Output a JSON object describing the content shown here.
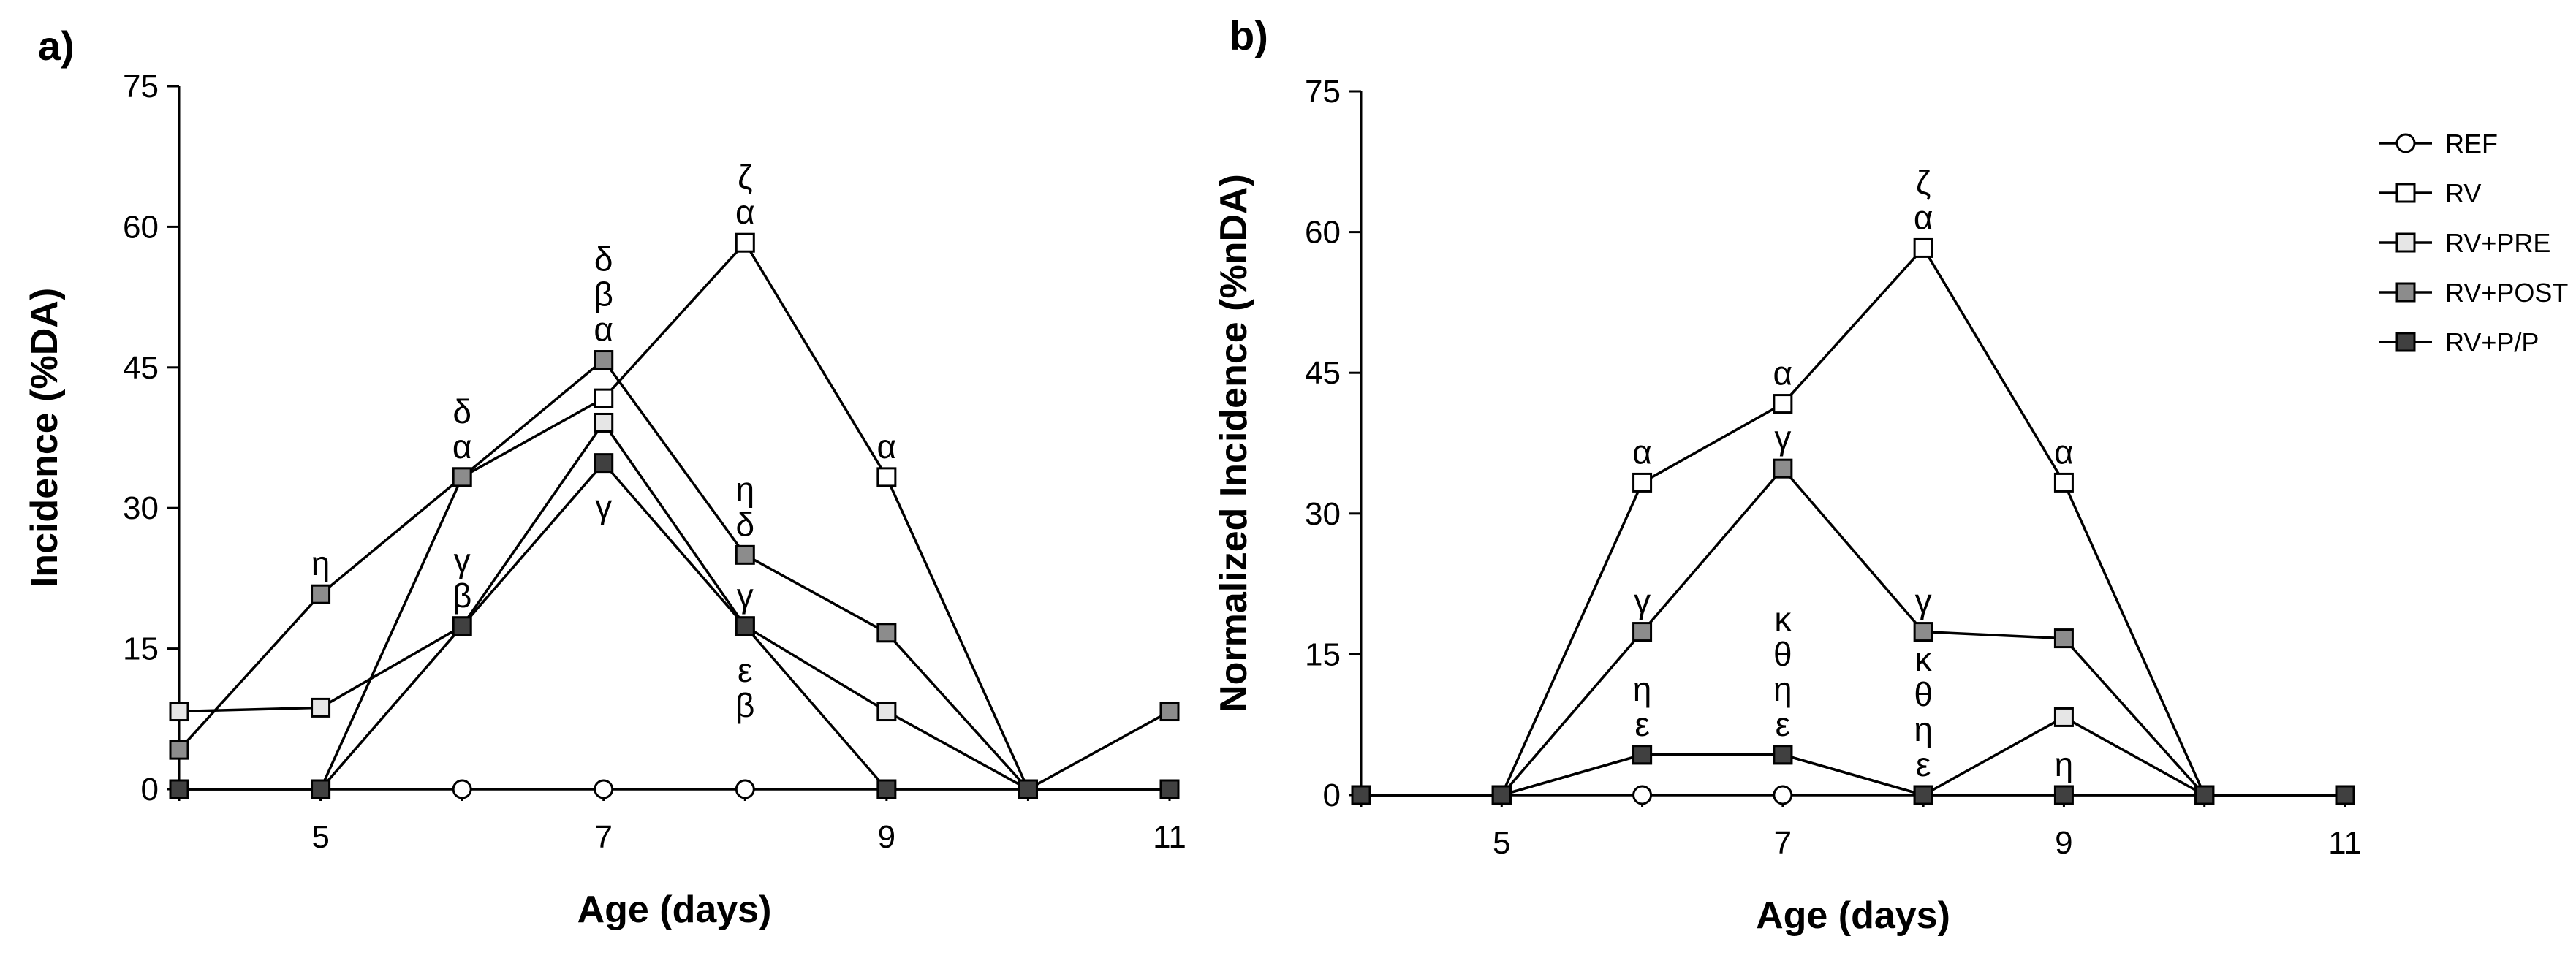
{
  "chart_data": [
    {
      "panel": "a)",
      "type": "line",
      "xlabel": "Age (days)",
      "ylabel": "Incidence (%DA)",
      "xlim": [
        4,
        11
      ],
      "ylim": [
        0,
        75
      ],
      "xticks": [
        5,
        7,
        9,
        11
      ],
      "yticks": [
        0,
        15,
        30,
        45,
        60,
        75
      ],
      "grid": false,
      "x": [
        4,
        5,
        6,
        7,
        8,
        9,
        10,
        11
      ],
      "series": [
        {
          "name": "REF",
          "marker": "circle",
          "fill": "#ffffff",
          "values": [
            0,
            0,
            0,
            0,
            0,
            0,
            0,
            0
          ]
        },
        {
          "name": "RV",
          "marker": "square",
          "fill": "#ffffff",
          "values": [
            0,
            0,
            33.3,
            41.7,
            58.3,
            33.3,
            0,
            0
          ]
        },
        {
          "name": "RV+PRE",
          "marker": "square",
          "fill": "#e6e6e6",
          "values": [
            8.3,
            8.7,
            17.4,
            39.1,
            17.4,
            8.3,
            0,
            0
          ]
        },
        {
          "name": "RV+POST",
          "marker": "square",
          "fill": "#8c8c8c",
          "values": [
            4.2,
            20.8,
            33.3,
            45.8,
            25.0,
            16.7,
            0,
            8.3
          ]
        },
        {
          "name": "RV+P/P",
          "marker": "square",
          "fill": "#404040",
          "values": [
            0,
            0,
            17.4,
            34.8,
            17.4,
            0,
            0,
            0
          ]
        }
      ],
      "annotations": [
        {
          "x": 5,
          "y": 20.8,
          "lines": [
            "η"
          ]
        },
        {
          "x": 6,
          "y": 33.3,
          "lines": [
            "δ",
            "α"
          ]
        },
        {
          "x": 6,
          "y": 17.4,
          "lines": [
            "γ",
            "β"
          ]
        },
        {
          "x": 7,
          "y": 45.8,
          "lines": [
            "δ",
            "β",
            "α"
          ]
        },
        {
          "x": 7,
          "y": 34.8,
          "lines": [
            "γ"
          ],
          "below": true
        },
        {
          "x": 8,
          "y": 58.3,
          "lines": [
            "ζ",
            "α"
          ]
        },
        {
          "x": 8,
          "y": 25.0,
          "lines": [
            "η",
            "δ"
          ]
        },
        {
          "x": 8,
          "y": 17.4,
          "lines": [
            "γ"
          ]
        },
        {
          "x": 8,
          "y": 17.4,
          "lines": [
            "ε",
            "β"
          ],
          "below": true
        },
        {
          "x": 9,
          "y": 33.3,
          "lines": [
            "α"
          ]
        }
      ]
    },
    {
      "panel": "b)",
      "type": "line",
      "xlabel": "Age (days)",
      "ylabel": "Normalized Incidence (%nDA)",
      "xlim": [
        4,
        11
      ],
      "ylim": [
        0,
        75
      ],
      "xticks": [
        5,
        7,
        9,
        11
      ],
      "yticks": [
        0,
        15,
        30,
        45,
        60,
        75
      ],
      "grid": false,
      "x": [
        4,
        5,
        6,
        7,
        8,
        9,
        10,
        11
      ],
      "series": [
        {
          "name": "REF",
          "marker": "circle",
          "fill": "#ffffff",
          "values": [
            0,
            0,
            0,
            0,
            0,
            0,
            0,
            0
          ]
        },
        {
          "name": "RV",
          "marker": "square",
          "fill": "#ffffff",
          "values": [
            0,
            0,
            33.3,
            41.7,
            58.3,
            33.3,
            0,
            0
          ]
        },
        {
          "name": "RV+PRE",
          "marker": "square",
          "fill": "#e6e6e6",
          "values": [
            0,
            0,
            4.3,
            4.3,
            0,
            8.3,
            0,
            0
          ]
        },
        {
          "name": "RV+POST",
          "marker": "square",
          "fill": "#8c8c8c",
          "values": [
            0,
            0,
            17.4,
            34.8,
            17.4,
            16.7,
            0,
            0
          ]
        },
        {
          "name": "RV+P/P",
          "marker": "square",
          "fill": "#404040",
          "values": [
            0,
            0,
            4.3,
            4.3,
            0,
            0,
            0,
            0
          ]
        }
      ],
      "annotations": [
        {
          "x": 6,
          "y": 33.3,
          "lines": [
            "α"
          ]
        },
        {
          "x": 6,
          "y": 17.4,
          "lines": [
            "γ"
          ]
        },
        {
          "x": 6,
          "y": 4.3,
          "lines": [
            "η",
            "ε"
          ]
        },
        {
          "x": 7,
          "y": 41.7,
          "lines": [
            "α"
          ]
        },
        {
          "x": 7,
          "y": 34.8,
          "lines": [
            "γ"
          ]
        },
        {
          "x": 7,
          "y": 4.3,
          "lines": [
            "κ",
            "θ",
            "η",
            "ε"
          ]
        },
        {
          "x": 8,
          "y": 58.3,
          "lines": [
            "ζ",
            "α"
          ]
        },
        {
          "x": 8,
          "y": 17.4,
          "lines": [
            "γ"
          ]
        },
        {
          "x": 8,
          "y": 0,
          "lines": [
            "κ",
            "θ",
            "η",
            "ε"
          ]
        },
        {
          "x": 9,
          "y": 33.3,
          "lines": [
            "α"
          ]
        },
        {
          "x": 9,
          "y": 0,
          "lines": [
            "η"
          ]
        }
      ]
    }
  ],
  "legend": {
    "position": "top-right",
    "entries": [
      {
        "label": "REF",
        "marker": "circle",
        "fill": "#ffffff"
      },
      {
        "label": "RV",
        "marker": "square",
        "fill": "#ffffff"
      },
      {
        "label": "RV+PRE",
        "marker": "square",
        "fill": "#e6e6e6"
      },
      {
        "label": "RV+POST",
        "marker": "square",
        "fill": "#8c8c8c"
      },
      {
        "label": "RV+P/P",
        "marker": "square",
        "fill": "#404040"
      }
    ]
  }
}
